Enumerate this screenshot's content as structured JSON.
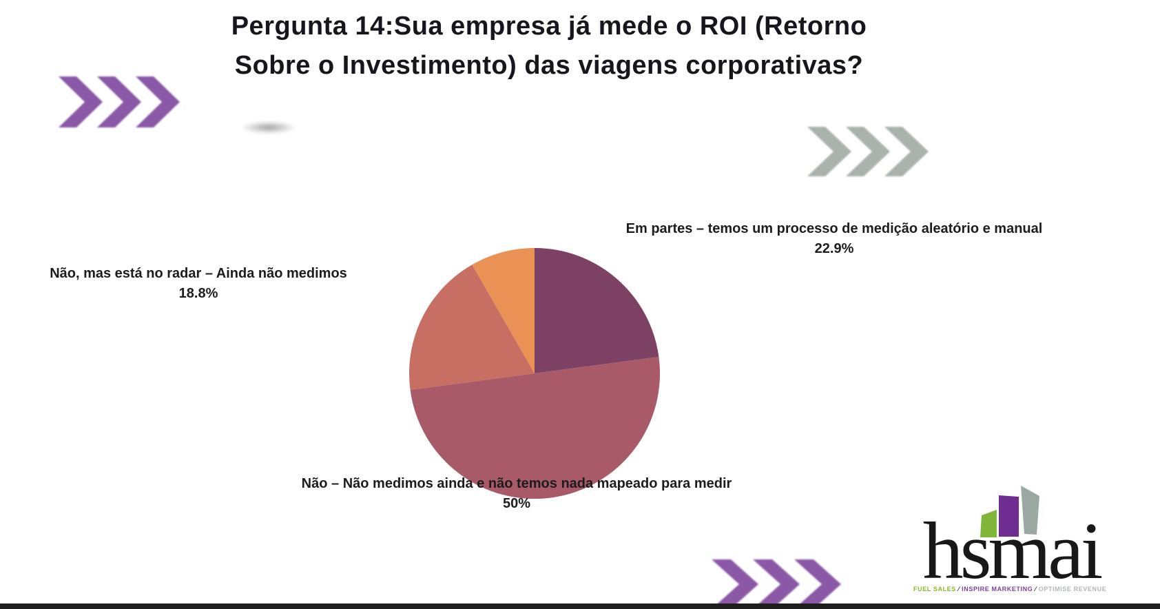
{
  "title": {
    "line1": "Pergunta 14:Sua empresa já mede o ROI (Retorno",
    "line2": "Sobre o Investimento) das viagens corporativas?"
  },
  "chart_data": {
    "type": "pie",
    "title": "Pergunta 14: Sua empresa já mede o ROI (Retorno Sobre o Investimento) das viagens corporativas?",
    "direction": "clockwise",
    "start_angle_deg": 0,
    "legend_position": "labels-around-pie",
    "slices": [
      {
        "label": "Em partes – temos um processo de medição aleatório e manual",
        "pct_label": "22.9%",
        "value": 22.9,
        "color": "#7d4263"
      },
      {
        "label": "Não – Não medimos ainda e não temos nada mapeado para medir",
        "pct_label": "50%",
        "value": 50.0,
        "color": "#a95a68"
      },
      {
        "label": "Não, mas está no radar – Ainda não medimos",
        "pct_label": "18.8%",
        "value": 18.8,
        "color": "#c76f62"
      },
      {
        "label": "",
        "pct_label": "",
        "value": 8.3,
        "color": "#ea9156"
      }
    ]
  },
  "decorations": {
    "chevron_purple_color": "#8a58a6",
    "chevron_gray_color": "#a9b2ab"
  },
  "logo": {
    "wordmark": "hsmai",
    "tagline_part1": "FUEL SALES",
    "tagline_sep1": " ⁄ ",
    "tagline_part2": "INSPIRE MARKETING",
    "tagline_sep2": " ⁄ ",
    "tagline_part3": "OPTIMISE REVENUE",
    "building_green": "#7fb539",
    "building_purple": "#6f2c91",
    "building_gray": "#9aa8a2"
  }
}
